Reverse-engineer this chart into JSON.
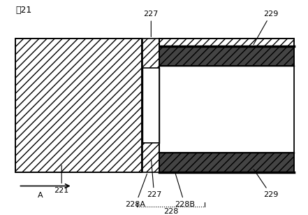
{
  "fig_width": 4.41,
  "fig_height": 3.07,
  "dpi": 100,
  "bg_color": "#ffffff",
  "fig_label": "図21",
  "label_221": "221",
  "label_227": "227",
  "label_228": "228",
  "label_228A": "228A",
  "label_228B": "228B",
  "label_229": "229",
  "label_A": "A",
  "hatch_light": "///",
  "hatch_dark": "xxx",
  "color_white": "#ffffff",
  "color_dark_band": "#444444",
  "color_black": "#000000"
}
